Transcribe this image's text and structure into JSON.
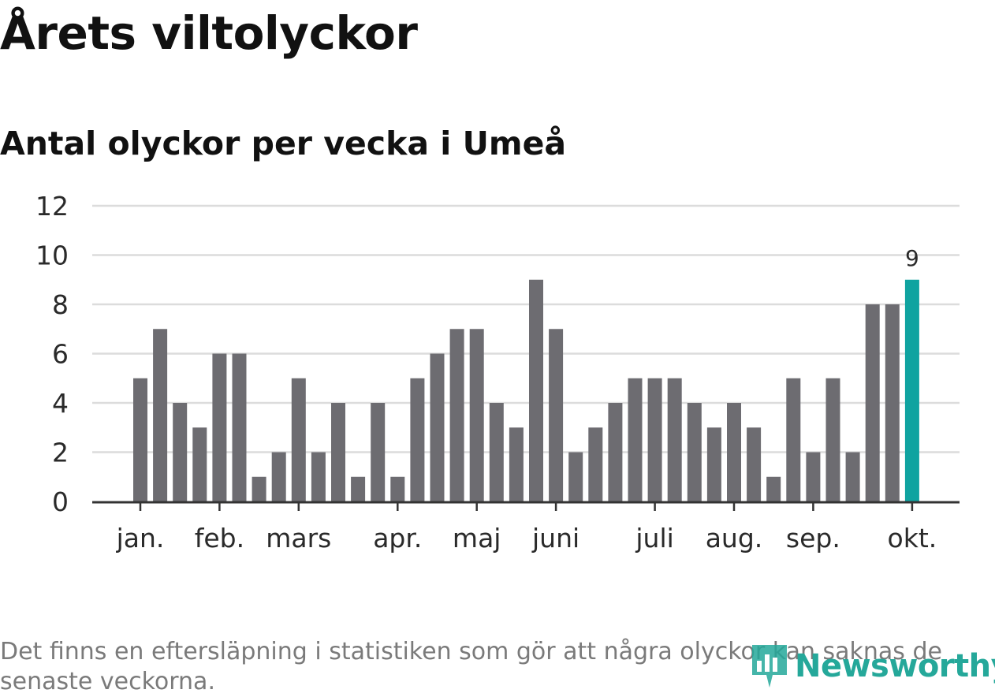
{
  "title": "Årets viltolyckor",
  "subtitle": "Antal olyckor per vecka i Umeå",
  "footnote": "Det finns en eftersläpning i statistiken som gör att några olyckor kan saknas de senaste veckorna.",
  "brand": {
    "name": "Newsworthy",
    "color": "#25a89a"
  },
  "chart_data": {
    "type": "bar",
    "title": "Antal olyckor per vecka i Umeå",
    "xlabel": "",
    "ylabel": "",
    "ylim": [
      0,
      12
    ],
    "yticks": [
      0,
      2,
      4,
      6,
      8,
      10,
      12
    ],
    "grid": true,
    "bar_color": "#6d6c71",
    "highlight_color": "#0fa3a0",
    "highlight_index": 39,
    "values": [
      5,
      7,
      4,
      3,
      6,
      6,
      1,
      2,
      5,
      2,
      4,
      1,
      4,
      1,
      5,
      6,
      7,
      7,
      4,
      3,
      9,
      7,
      2,
      3,
      4,
      5,
      5,
      5,
      4,
      3,
      4,
      3,
      1,
      5,
      2,
      5,
      2,
      8,
      8,
      9
    ],
    "month_labels": [
      {
        "label": "jan.",
        "at": 0.5
      },
      {
        "label": "feb.",
        "at": 4.5
      },
      {
        "label": "mars",
        "at": 8.5
      },
      {
        "label": "apr.",
        "at": 13.5
      },
      {
        "label": "maj",
        "at": 17.5
      },
      {
        "label": "juni",
        "at": 21.5
      },
      {
        "label": "juli",
        "at": 26.5
      },
      {
        "label": "aug.",
        "at": 30.5
      },
      {
        "label": "sep.",
        "at": 34.5
      },
      {
        "label": "okt.",
        "at": 39.5
      }
    ],
    "annotations": [
      {
        "index": 39,
        "text": "9"
      }
    ]
  }
}
